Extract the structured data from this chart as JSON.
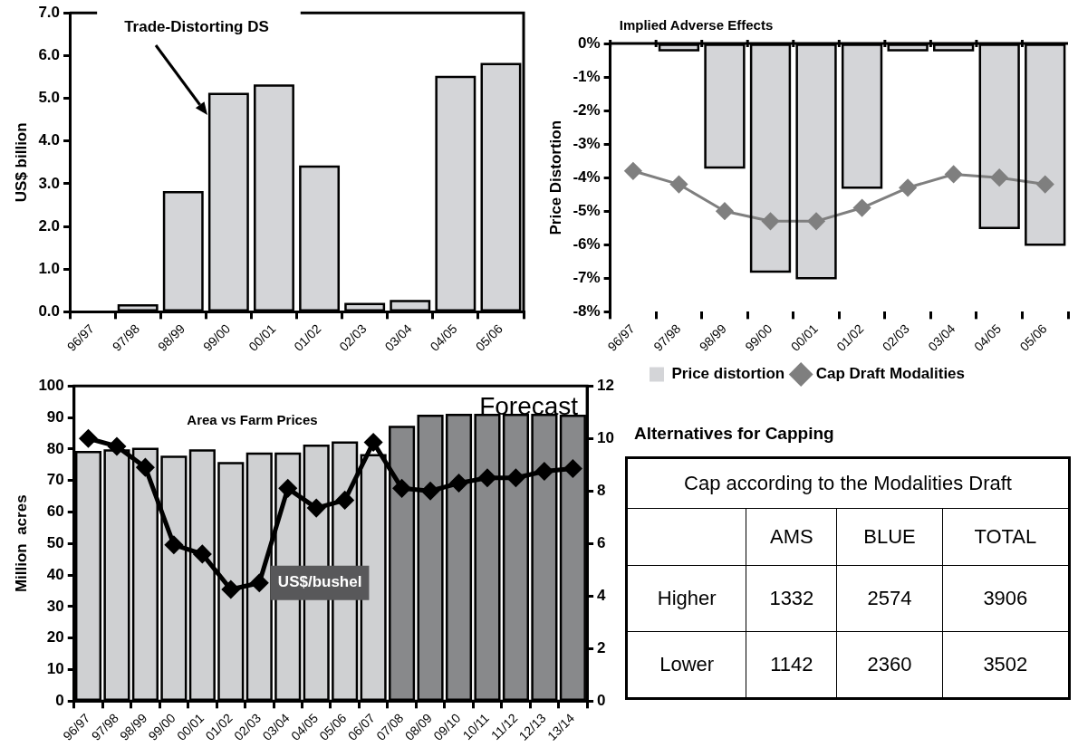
{
  "chart_data": [
    {
      "type": "bar",
      "title": "Trade-Distorting DS",
      "ylabel": "US$ billion",
      "categories": [
        "96/97",
        "97/98",
        "98/99",
        "99/00",
        "00/01",
        "01/02",
        "02/03",
        "03/04",
        "04/05",
        "05/06"
      ],
      "values": [
        0,
        0.15,
        2.8,
        5.1,
        5.3,
        3.4,
        0.18,
        0.25,
        5.5,
        5.8
      ],
      "color": "#d4d5d8",
      "ylim": [
        0,
        7
      ],
      "yticks": [
        {
          "value": 0,
          "label": "0.0"
        },
        {
          "value": 1,
          "label": "1.0"
        },
        {
          "value": 2,
          "label": "2.0"
        },
        {
          "value": 3,
          "label": "3.0"
        },
        {
          "value": 4,
          "label": "4.0"
        },
        {
          "value": 5,
          "label": "5.0"
        },
        {
          "value": 6,
          "label": "6.0"
        },
        {
          "value": 7,
          "label": "7.0"
        }
      ],
      "grid": false,
      "legend": false
    },
    {
      "type": "bar",
      "title": "Implied Adverse Effects",
      "ylabel": "Price Distortion",
      "categories": [
        "96/97",
        "97/98",
        "98/99",
        "99/00",
        "00/01",
        "01/02",
        "02/03",
        "03/04",
        "04/05",
        "05/06"
      ],
      "series": [
        {
          "name": "Price distortion",
          "type": "bar",
          "color": "#d4d5d8",
          "values": [
            0,
            -0.2,
            -3.7,
            -6.8,
            -7.0,
            -4.3,
            -0.2,
            -0.2,
            -5.5,
            -6.0
          ]
        },
        {
          "name": "Cap Draft Modalities",
          "type": "line",
          "color": "#7f7f7f",
          "values": [
            -3.8,
            -4.2,
            -5.0,
            -5.3,
            -5.3,
            -4.9,
            -4.3,
            -3.9,
            -4.0,
            -4.2
          ]
        }
      ],
      "ylim": [
        -8,
        0
      ],
      "yticks": [
        {
          "value": -8,
          "label": "-8%"
        },
        {
          "value": -7,
          "label": "-7%"
        },
        {
          "value": -6,
          "label": "-6%"
        },
        {
          "value": -5,
          "label": "-5%"
        },
        {
          "value": -4,
          "label": "-4%"
        },
        {
          "value": -3,
          "label": "-3%"
        },
        {
          "value": -2,
          "label": "-2%"
        },
        {
          "value": -1,
          "label": "-1%"
        },
        {
          "value": 0,
          "label": "0%"
        }
      ],
      "grid": false,
      "legend": "bottom",
      "marker": "diamond",
      "line_style": "solid"
    },
    {
      "type": "bar",
      "title": "Area vs Farm Prices",
      "ylabel": "Million  acres",
      "annotations": [
        "Forecast"
      ],
      "categories": [
        "96/97",
        "97/98",
        "98/99",
        "99/00",
        "00/01",
        "01/02",
        "02/03",
        "03/04",
        "04/05",
        "05/06",
        "06/07",
        "07/08",
        "08/09",
        "09/10",
        "10/11",
        "11/12",
        "12/13",
        "13/14"
      ],
      "series": [
        {
          "type": "bar",
          "values": [
            79,
            79.5,
            80,
            77.5,
            79.5,
            75.5,
            78.5,
            78.5,
            81,
            82,
            78,
            87,
            90.5,
            90.8,
            90.8,
            90.8,
            90.8,
            90.5
          ],
          "colors": [
            "#cfd0d2",
            "#cfd0d2",
            "#cfd0d2",
            "#cfd0d2",
            "#cfd0d2",
            "#cfd0d2",
            "#cfd0d2",
            "#cfd0d2",
            "#cfd0d2",
            "#cfd0d2",
            "#cfd0d2",
            "#88898b",
            "#88898b",
            "#88898b",
            "#88898b",
            "#88898b",
            "#88898b",
            "#88898b"
          ]
        },
        {
          "name": "US$/bushel",
          "type": "line",
          "axis": "y2",
          "color": "#000000",
          "values": [
            10.0,
            9.7,
            8.9,
            5.95,
            5.6,
            4.25,
            4.5,
            8.1,
            7.35,
            7.65,
            9.85,
            8.1,
            8.0,
            8.3,
            8.5,
            8.5,
            8.75,
            8.85
          ]
        }
      ],
      "ylim": [
        0,
        100
      ],
      "yticks": [
        0,
        10,
        20,
        30,
        40,
        50,
        60,
        70,
        80,
        90,
        100
      ],
      "y2lim": [
        0,
        12
      ],
      "y2ticks": [
        0,
        2,
        4,
        6,
        8,
        10,
        12
      ],
      "grid": false,
      "legend": false,
      "marker": "diamond",
      "line_style": "solid"
    },
    {
      "type": "other",
      "title": "Alternatives for Capping",
      "subtitle": "Cap according to the  Modalities Draft",
      "categories": [
        "AMS",
        "BLUE",
        "TOTAL"
      ],
      "y_categories": [
        "Higher",
        "Lower"
      ],
      "annotations": [
        "1332",
        "2574",
        "3906",
        "1142",
        "2360",
        "3502"
      ]
    }
  ]
}
